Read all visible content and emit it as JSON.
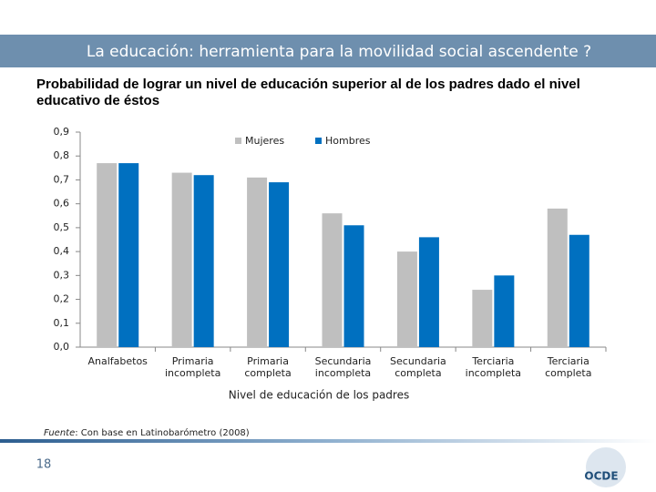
{
  "header": {
    "title": "La educación: herramienta para la movilidad social ascendente ?"
  },
  "subtitle": "Probabilidad de lograr un nivel de educación superior al de los padres dado el nivel educativo de éstos",
  "chart_data": {
    "type": "bar",
    "x_label": "Nivel de educación de los padres",
    "categories": [
      "Analfabetos",
      "Primaria incompleta",
      "Primaria completa",
      "Secundaria incompleta",
      "Secundaria completa",
      "Terciaria incompleta",
      "Terciaria completa"
    ],
    "series": [
      {
        "name": "Mujeres",
        "color": "#bfbfbf",
        "values": [
          0.77,
          0.73,
          0.71,
          0.56,
          0.4,
          0.24,
          0.58
        ]
      },
      {
        "name": "Hombres",
        "color": "#0070c0",
        "values": [
          0.77,
          0.72,
          0.69,
          0.51,
          0.46,
          0.3,
          0.47
        ]
      }
    ],
    "ylim": [
      0,
      0.9
    ],
    "yticks": [
      {
        "value": 0,
        "label": "0,0"
      },
      {
        "value": 0.1,
        "label": "0,1"
      },
      {
        "value": 0.2,
        "label": "0,2"
      },
      {
        "value": 0.3,
        "label": "0,3"
      },
      {
        "value": 0.4,
        "label": "0,4"
      },
      {
        "value": 0.5,
        "label": "0,5"
      },
      {
        "value": 0.6,
        "label": "0,6"
      },
      {
        "value": 0.7,
        "label": "0,7"
      },
      {
        "value": 0.8,
        "label": "0,8"
      },
      {
        "value": 0.9,
        "label": "0,9"
      }
    ],
    "grid": false,
    "legend": "top"
  },
  "footer": {
    "source_label": "Fuente",
    "source_text": ": Con base en Latinobarómetro (2008)",
    "page_number": "18",
    "logo": "OCDE"
  }
}
